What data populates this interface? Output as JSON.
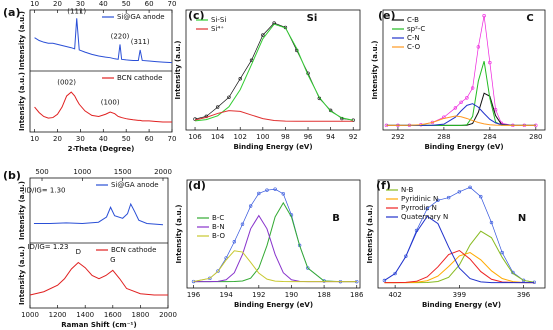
{
  "chart_data": [
    {
      "type": "line",
      "panel": "(a)",
      "xlabel": "2-Theta (Degree)",
      "ylabel": "Intensity (a.u.)",
      "stacked": true,
      "x": [
        10,
        12,
        14,
        16,
        18,
        20,
        22,
        24,
        26,
        27.5,
        28.4,
        29.5,
        32,
        35,
        38,
        41,
        43,
        45,
        46.5,
        47.3,
        48,
        50,
        53,
        55.3,
        56.1,
        57,
        60,
        63,
        66,
        70
      ],
      "xlim": [
        8,
        70
      ],
      "xticks": [
        10,
        20,
        30,
        40,
        50,
        60,
        70
      ],
      "x2lim": [
        8,
        70
      ],
      "x2ticks": [
        10,
        20,
        30,
        40,
        50,
        60,
        70
      ],
      "series": [
        {
          "name": "Si@GA anode",
          "color": "#2a4fd6",
          "ylim": [
            0,
            110
          ],
          "values": [
            60,
            55,
            52,
            50,
            50,
            48,
            46,
            44,
            42,
            40,
            95,
            38,
            34,
            30,
            27,
            25,
            24,
            22,
            21,
            48,
            21,
            20,
            19,
            19,
            38,
            19,
            18,
            17,
            16,
            15
          ],
          "annotations": [
            {
              "text": "(111)",
              "x": 28.4,
              "y": 100
            },
            {
              "text": "(220)",
              "x": 47.3,
              "y": 55
            },
            {
              "text": "(311)",
              "x": 56.1,
              "y": 45
            }
          ]
        },
        {
          "name": "BCN cathode",
          "color": "#e02020",
          "ylim": [
            0,
            110
          ],
          "values": [
            45,
            35,
            28,
            25,
            26,
            32,
            45,
            65,
            72,
            65,
            58,
            50,
            38,
            30,
            28,
            32,
            36,
            33,
            28,
            27,
            26,
            24,
            22,
            21,
            21,
            20,
            20,
            19,
            18,
            18
          ],
          "annotations": [
            {
              "text": "(002)",
              "x": 24,
              "y": 82
            },
            {
              "text": "(100)",
              "x": 43,
              "y": 46
            }
          ]
        }
      ]
    },
    {
      "type": "line",
      "panel": "(b)",
      "xlabel": "Raman Shift (cm⁻¹)",
      "ylabel": "Intensity (a.u.)",
      "stacked": true,
      "xlim": [
        1000,
        2000
      ],
      "xticks": [
        1000,
        1200,
        1400,
        1600,
        1800,
        2000
      ],
      "x2lim": [
        351,
        2062
      ],
      "x2ticks": [
        500,
        1000,
        1500,
        2000
      ],
      "series": [
        {
          "name": "Si@GA anode",
          "color": "#2a4fd6",
          "axis": "x2",
          "ylim": [
            0,
            100
          ],
          "x": [
            400,
            600,
            800,
            1000,
            1200,
            1300,
            1350,
            1400,
            1500,
            1560,
            1600,
            1650,
            1700,
            1800,
            2000
          ],
          "values": [
            30,
            30,
            31,
            30,
            32,
            40,
            55,
            42,
            38,
            45,
            60,
            48,
            35,
            30,
            28
          ],
          "annotations": [
            {
              "text": "ID/IG= 1.30",
              "x": 537,
              "y": 75
            }
          ]
        },
        {
          "name": "BCN cathode",
          "color": "#e02020",
          "ylim": [
            0,
            100
          ],
          "x": [
            1000,
            1100,
            1200,
            1250,
            1300,
            1350,
            1400,
            1450,
            1500,
            1550,
            1600,
            1650,
            1700,
            1800,
            1900,
            2000
          ],
          "values": [
            20,
            25,
            35,
            45,
            60,
            70,
            62,
            50,
            45,
            50,
            58,
            45,
            30,
            22,
            20,
            20
          ],
          "annotations": [
            {
              "text": "ID/IG= 1.23",
              "x": 1130,
              "y": 88
            },
            {
              "text": "D",
              "x": 1350,
              "y": 80
            },
            {
              "text": "G",
              "x": 1600,
              "y": 68
            }
          ]
        }
      ]
    },
    {
      "type": "line",
      "panel": "(c)",
      "title": "Si",
      "xlabel": "Binding Energy (eV)",
      "ylabel": "Intensity (a.u.)",
      "legend": "upper left",
      "x": [
        106,
        105,
        104,
        103,
        102,
        101,
        100,
        99,
        98,
        97,
        96,
        95,
        94,
        93,
        92
      ],
      "xlim": [
        106.8,
        91.4
      ],
      "xticks": [
        106,
        104,
        102,
        100,
        98,
        96,
        94,
        92
      ],
      "ylim": [
        0,
        110
      ],
      "series": [
        {
          "color": "#111111",
          "markers": true,
          "values": [
            10,
            12.5,
            21,
            30,
            47,
            64,
            87,
            98,
            94,
            73,
            52,
            29,
            18,
            10.5,
            9
          ]
        },
        {
          "name": "Si-Si",
          "color": "#33cc33",
          "values": [
            8.4,
            9.5,
            13,
            21.3,
            37,
            60,
            83.6,
            97,
            93.6,
            74.7,
            50.4,
            29.9,
            17.2,
            11.1,
            8.9
          ]
        },
        {
          "name": "Si⁴⁺",
          "color": "#e03030",
          "values": [
            9.2,
            11.6,
            15.2,
            17.8,
            17.1,
            13.7,
            10.4,
            8.7,
            8.1,
            8,
            8,
            8,
            8,
            8,
            8
          ]
        }
      ]
    },
    {
      "type": "line",
      "panel": "(d)",
      "title": "B",
      "xlabel": "Binding Energy (eV)",
      "ylabel": "Intensity (a.u.)",
      "legend": "upper left",
      "x": [
        196,
        195,
        194.5,
        194,
        193.5,
        193,
        192.5,
        192,
        191.5,
        191,
        190.5,
        190,
        189.5,
        189,
        188,
        187,
        186
      ],
      "xlim": [
        196.4,
        185.8
      ],
      "xticks": [
        196,
        194,
        192,
        190,
        188,
        186
      ],
      "ylim": [
        0,
        85
      ],
      "series": [
        {
          "color": "#3355dd",
          "markers": true,
          "values": [
            5.1,
            7.6,
            13.3,
            23.6,
            36.4,
            50.2,
            64.5,
            74.4,
            77,
            77.8,
            74.1,
            57.5,
            33.6,
            15.7,
            5.5,
            5,
            5
          ]
        },
        {
          "name": "B-C",
          "color": "#33aa33",
          "values": [
            5,
            5,
            5,
            5,
            5.1,
            5.5,
            7.7,
            15.7,
            33.4,
            56,
            67,
            56,
            33.4,
            15.7,
            5.5,
            5,
            5
          ]
        },
        {
          "name": "B-N",
          "color": "#8833cc",
          "values": [
            5,
            5,
            5.2,
            6.5,
            12,
            26.4,
            46.6,
            57,
            46.6,
            26.4,
            12,
            6.5,
            5.2,
            5,
            5,
            5,
            5
          ]
        },
        {
          "name": "B-O",
          "color": "#c8c830",
          "values": [
            5.1,
            7.6,
            13.1,
            22.1,
            29.3,
            28.3,
            20.2,
            11.7,
            7,
            5.4,
            5.1,
            5,
            5,
            5,
            5,
            5,
            5
          ]
        }
      ]
    },
    {
      "type": "line",
      "panel": "(e)",
      "title": "C",
      "xlabel": "Binding Energy (eV)",
      "ylabel": "Intensity (a.u.)",
      "legend": "upper left",
      "x": [
        293,
        292,
        291,
        290,
        289,
        288,
        287,
        286.5,
        286,
        285.5,
        285,
        284.5,
        284,
        283.5,
        283,
        282,
        281,
        280
      ],
      "xlim": [
        293.3,
        279.2
      ],
      "xticks": [
        292,
        288,
        284,
        280
      ],
      "ylim": [
        0,
        155
      ],
      "series": [
        {
          "color": "#ee22dd",
          "markers": true,
          "values": [
            6,
            6,
            6.1,
            6.8,
            9.8,
            16.5,
            28.5,
            35.8,
            41.5,
            54.2,
            107.3,
            147.6,
            87.1,
            26.2,
            8.8,
            6,
            6,
            6
          ]
        },
        {
          "name": "C-B",
          "color": "#111111",
          "values": [
            6,
            6,
            6,
            6,
            6,
            6,
            6,
            6,
            6.1,
            8.5,
            22.9,
            47.5,
            43.6,
            18.5,
            7.5,
            6,
            6,
            6
          ]
        },
        {
          "name": "sp²-C",
          "color": "#22bb22",
          "values": [
            6,
            6,
            6,
            6,
            6,
            6,
            6,
            6,
            6.7,
            17.5,
            63.3,
            88.9,
            40.9,
            10.3,
            6.2,
            6,
            6,
            6
          ]
        },
        {
          "name": "C-N",
          "color": "#2233cc",
          "values": [
            6,
            6,
            6,
            6,
            6.1,
            7.6,
            16.5,
            24.7,
            31.8,
            34,
            29.4,
            21.3,
            13.8,
            9.1,
            7,
            6,
            6,
            6
          ]
        },
        {
          "name": "C-O",
          "color": "#ff9922",
          "values": [
            6,
            6,
            6.1,
            6.8,
            9.7,
            14.9,
            18,
            17.1,
            14.9,
            12.2,
            9.7,
            7.9,
            6.8,
            6.3,
            6.1,
            6,
            6,
            6
          ]
        }
      ]
    },
    {
      "type": "line",
      "panel": "(f)",
      "title": "N",
      "xlabel": "Binding Energy (eV)",
      "ylabel": "Intensity (a.u.)",
      "legend": "upper left",
      "x": [
        402.5,
        402,
        401.5,
        401,
        400.5,
        400,
        399.5,
        399,
        398.5,
        398,
        397.5,
        397,
        396.5,
        396,
        395.5
      ],
      "xlim": [
        402.8,
        395
      ],
      "xticks": [
        402,
        399,
        396
      ],
      "ylim": [
        0,
        100
      ],
      "series": [
        {
          "color": "#3355dd",
          "markers": true,
          "values": [
            7,
            13.4,
            29.4,
            53.3,
            73.5,
            81.2,
            83.7,
            89.1,
            93.2,
            84.6,
            60.6,
            32.8,
            14.4,
            7.1,
            5.3
          ]
        },
        {
          "name": "N-B",
          "color": "#88bb22",
          "values": [
            5,
            5,
            5,
            5,
            5.1,
            6,
            9.9,
            21.3,
            39.9,
            52.6,
            46.6,
            28.4,
            13.4,
            7,
            5.3
          ]
        },
        {
          "name": "Pyridinic N",
          "color": "#ffaa00",
          "values": [
            5,
            5,
            5,
            5.3,
            6.7,
            11,
            19.9,
            29.7,
            32.8,
            26.1,
            15.9,
            8.8,
            5.9,
            5.1,
            5
          ]
        },
        {
          "name": "Pyrrodic N",
          "color": "#ee2222",
          "values": [
            5,
            5,
            5.2,
            6.2,
            10.3,
            19.6,
            31,
            34.7,
            26.8,
            15.2,
            8.1,
            5.6,
            5.1,
            5,
            5
          ]
        },
        {
          "name": "Quaternary N",
          "color": "#2233cc",
          "values": [
            7,
            13.4,
            29.2,
            51.8,
            66.4,
            59.6,
            37.9,
            18.4,
            8.7,
            5.7,
            5,
            5,
            5,
            5,
            5
          ]
        }
      ]
    }
  ]
}
